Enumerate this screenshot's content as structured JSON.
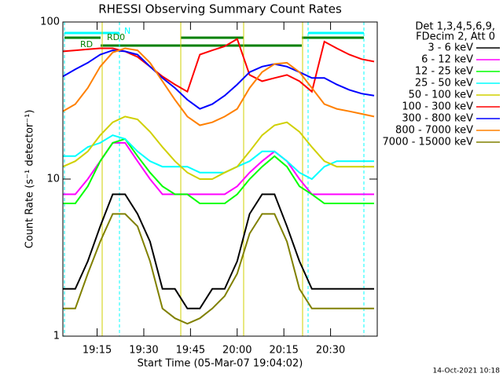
{
  "chart_data": {
    "type": "line",
    "title": "RHESSI Observing Summary Count Rates",
    "x_label": "Start Time (05-Mar-07 19:04:02)",
    "y_label": "Count Rate (s⁻¹ detector⁻¹)",
    "legend_title": [
      "Det 1,3,4,5,6,9,",
      "FDecim 2, Att 0"
    ],
    "annotations": [
      "RD",
      "RD0",
      "N"
    ],
    "footer": "14-Oct-2021 10:18",
    "log_y": true,
    "legend": "right",
    "xlim": [
      "19:04",
      "20:45"
    ],
    "xticks": [
      "19:15",
      "19:30",
      "19:45",
      "20:00",
      "20:15",
      "20:30"
    ],
    "ylim": [
      1,
      100
    ],
    "yticks": [
      1,
      10,
      100
    ],
    "x": [
      "19:04",
      "19:08",
      "19:12",
      "19:16",
      "19:20",
      "19:24",
      "19:28",
      "19:32",
      "19:36",
      "19:40",
      "19:44",
      "19:48",
      "19:52",
      "19:56",
      "20:00",
      "20:04",
      "20:08",
      "20:12",
      "20:16",
      "20:20",
      "20:24",
      "20:28",
      "20:32",
      "20:36",
      "20:40",
      "20:44"
    ],
    "series": [
      {
        "name": "3 - 6 keV",
        "color": "#000000",
        "values": [
          2,
          2,
          3,
          5,
          8,
          8,
          6,
          4,
          2,
          2,
          1.5,
          1.5,
          2,
          2,
          3,
          6,
          8,
          8,
          5,
          3,
          2,
          2,
          2,
          2,
          2,
          2
        ]
      },
      {
        "name": "6 - 12 keV",
        "color": "#ff00ff",
        "values": [
          8,
          8,
          10,
          13,
          17,
          17,
          13,
          10,
          8,
          8,
          8,
          8,
          8,
          8,
          9,
          11,
          13,
          15,
          13,
          10,
          8,
          8,
          8,
          8,
          8,
          8
        ]
      },
      {
        "name": "12 - 25 keV",
        "color": "#00ff00",
        "values": [
          7,
          7,
          9,
          13,
          17,
          18,
          14,
          11,
          9,
          8,
          8,
          7,
          7,
          7,
          8,
          10,
          12,
          14,
          12,
          9,
          8,
          7,
          7,
          7,
          7,
          7
        ]
      },
      {
        "name": "25 - 50 keV",
        "color": "#00ffff",
        "values": [
          14,
          14,
          16,
          17,
          19,
          18,
          15,
          13,
          12,
          12,
          12,
          11,
          11,
          11,
          12,
          13,
          15,
          15,
          13,
          11,
          10,
          12,
          13,
          13,
          13,
          13
        ]
      },
      {
        "name": "50 - 100 keV",
        "color": "#d0d000",
        "values": [
          12,
          13,
          15,
          19,
          23,
          25,
          24,
          20,
          16,
          13,
          11,
          10,
          10,
          11,
          12,
          15,
          19,
          22,
          23,
          20,
          16,
          13,
          12,
          12,
          12,
          12
        ]
      },
      {
        "name": "100 - 300 keV",
        "color": "#ff0000",
        "values": [
          65,
          66,
          67,
          68,
          68,
          65,
          60,
          52,
          45,
          40,
          36,
          62,
          66,
          70,
          78,
          46,
          42,
          44,
          46,
          42,
          36,
          75,
          68,
          62,
          58,
          56
        ]
      },
      {
        "name": "300 - 800 keV",
        "color": "#0000ff",
        "values": [
          45,
          50,
          55,
          62,
          66,
          65,
          62,
          52,
          44,
          38,
          32,
          28,
          30,
          34,
          40,
          48,
          52,
          54,
          52,
          48,
          44,
          44,
          40,
          37,
          35,
          34
        ]
      },
      {
        "name": "800 - 7000 keV",
        "color": "#ff8000",
        "values": [
          27,
          30,
          38,
          52,
          64,
          68,
          66,
          55,
          42,
          32,
          25,
          22,
          23,
          25,
          28,
          38,
          48,
          54,
          55,
          48,
          38,
          30,
          28,
          27,
          26,
          25
        ]
      },
      {
        "name": "7000 - 15000 keV",
        "color": "#808000",
        "values": [
          1.5,
          1.5,
          2.5,
          4,
          6,
          6,
          5,
          3,
          1.5,
          1.3,
          1.2,
          1.3,
          1.5,
          1.8,
          2.5,
          4.5,
          6,
          6,
          4,
          2,
          1.5,
          1.5,
          1.5,
          1.5,
          1.5,
          1.5
        ]
      }
    ]
  }
}
